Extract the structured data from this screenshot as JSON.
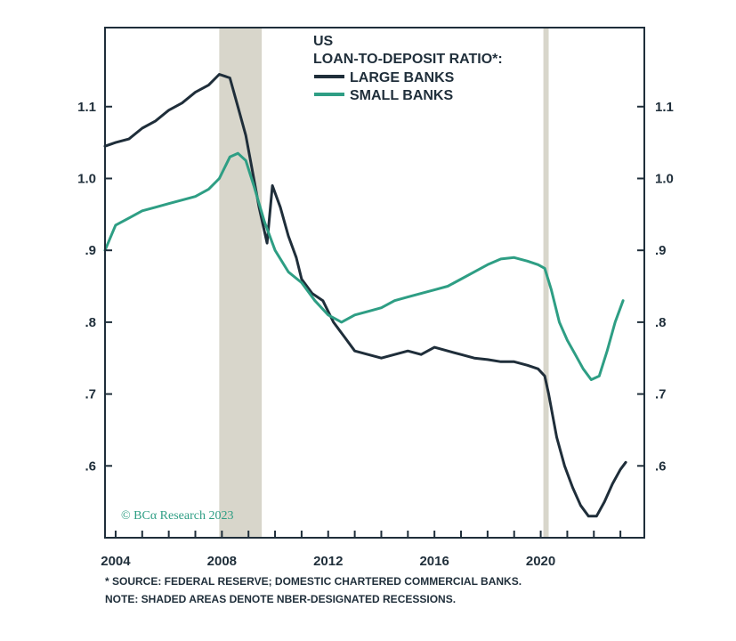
{
  "chart_data": {
    "type": "line",
    "title": "US",
    "subtitle": "LOAN-TO-DEPOSIT RATIO*:",
    "xlim": [
      2003.6,
      2023.9
    ],
    "ylim": [
      0.5,
      1.21
    ],
    "x_ticks": [
      2004,
      2008,
      2012,
      2016,
      2020
    ],
    "x_tick_labels": [
      "2004",
      "2008",
      "2012",
      "2016",
      "2020"
    ],
    "y_ticks": [
      0.6,
      0.7,
      0.8,
      0.9,
      1.0,
      1.1
    ],
    "y_tick_labels": [
      ".6",
      ".7",
      ".8",
      ".9",
      "1.0",
      "1.1"
    ],
    "grid": false,
    "legend_placement": "top-center",
    "recessions": [
      [
        2007.9,
        2009.5
      ],
      [
        2020.1,
        2020.3
      ]
    ],
    "series": [
      {
        "name": "LARGE BANKS",
        "color": "#1f2e3a",
        "x": [
          2003.6,
          2004.0,
          2004.5,
          2005.0,
          2005.5,
          2006.0,
          2006.5,
          2007.0,
          2007.5,
          2007.9,
          2008.3,
          2008.6,
          2008.9,
          2009.1,
          2009.4,
          2009.7,
          2009.9,
          2010.2,
          2010.5,
          2010.8,
          2011.0,
          2011.4,
          2011.8,
          2012.2,
          2012.6,
          2013.0,
          2013.5,
          2014.0,
          2014.5,
          2015.0,
          2015.5,
          2016.0,
          2016.5,
          2017.0,
          2017.5,
          2018.0,
          2018.5,
          2019.0,
          2019.5,
          2019.9,
          2020.15,
          2020.3,
          2020.6,
          2020.9,
          2021.2,
          2021.5,
          2021.8,
          2022.1,
          2022.4,
          2022.7,
          2023.0,
          2023.2
        ],
        "y": [
          1.045,
          1.05,
          1.055,
          1.07,
          1.08,
          1.095,
          1.105,
          1.12,
          1.13,
          1.145,
          1.14,
          1.1,
          1.06,
          1.02,
          0.96,
          0.91,
          0.99,
          0.96,
          0.92,
          0.89,
          0.86,
          0.84,
          0.83,
          0.8,
          0.78,
          0.76,
          0.755,
          0.75,
          0.755,
          0.76,
          0.755,
          0.765,
          0.76,
          0.755,
          0.75,
          0.748,
          0.745,
          0.745,
          0.74,
          0.735,
          0.725,
          0.7,
          0.64,
          0.6,
          0.57,
          0.545,
          0.53,
          0.53,
          0.55,
          0.575,
          0.595,
          0.605
        ]
      },
      {
        "name": "SMALL BANKS",
        "color": "#2e9e84",
        "x": [
          2003.6,
          2004.0,
          2004.5,
          2005.0,
          2005.5,
          2006.0,
          2006.5,
          2007.0,
          2007.5,
          2007.9,
          2008.3,
          2008.6,
          2008.9,
          2009.2,
          2009.6,
          2010.0,
          2010.5,
          2011.0,
          2011.5,
          2012.0,
          2012.5,
          2013.0,
          2013.5,
          2014.0,
          2014.5,
          2015.0,
          2015.5,
          2016.0,
          2016.5,
          2017.0,
          2017.5,
          2018.0,
          2018.5,
          2019.0,
          2019.5,
          2019.9,
          2020.15,
          2020.4,
          2020.7,
          2021.0,
          2021.3,
          2021.6,
          2021.9,
          2022.2,
          2022.5,
          2022.8,
          2023.1
        ],
        "y": [
          0.9,
          0.935,
          0.945,
          0.955,
          0.96,
          0.965,
          0.97,
          0.975,
          0.985,
          1.0,
          1.03,
          1.035,
          1.025,
          0.99,
          0.94,
          0.9,
          0.87,
          0.855,
          0.83,
          0.81,
          0.8,
          0.81,
          0.815,
          0.82,
          0.83,
          0.835,
          0.84,
          0.845,
          0.85,
          0.86,
          0.87,
          0.88,
          0.888,
          0.89,
          0.885,
          0.88,
          0.875,
          0.845,
          0.8,
          0.775,
          0.755,
          0.735,
          0.72,
          0.725,
          0.76,
          0.8,
          0.83
        ]
      }
    ]
  },
  "copyright": "© BCα Research 2023",
  "notes": {
    "source": "* SOURCE: FEDERAL RESERVE; DOMESTIC CHARTERED COMMERCIAL BANKS.",
    "shading": "NOTE: SHADED AREAS DENOTE NBER-DESIGNATED RECESSIONS."
  },
  "colors": {
    "axis": "#1f2e3a",
    "recession": "#d8d6cb"
  }
}
